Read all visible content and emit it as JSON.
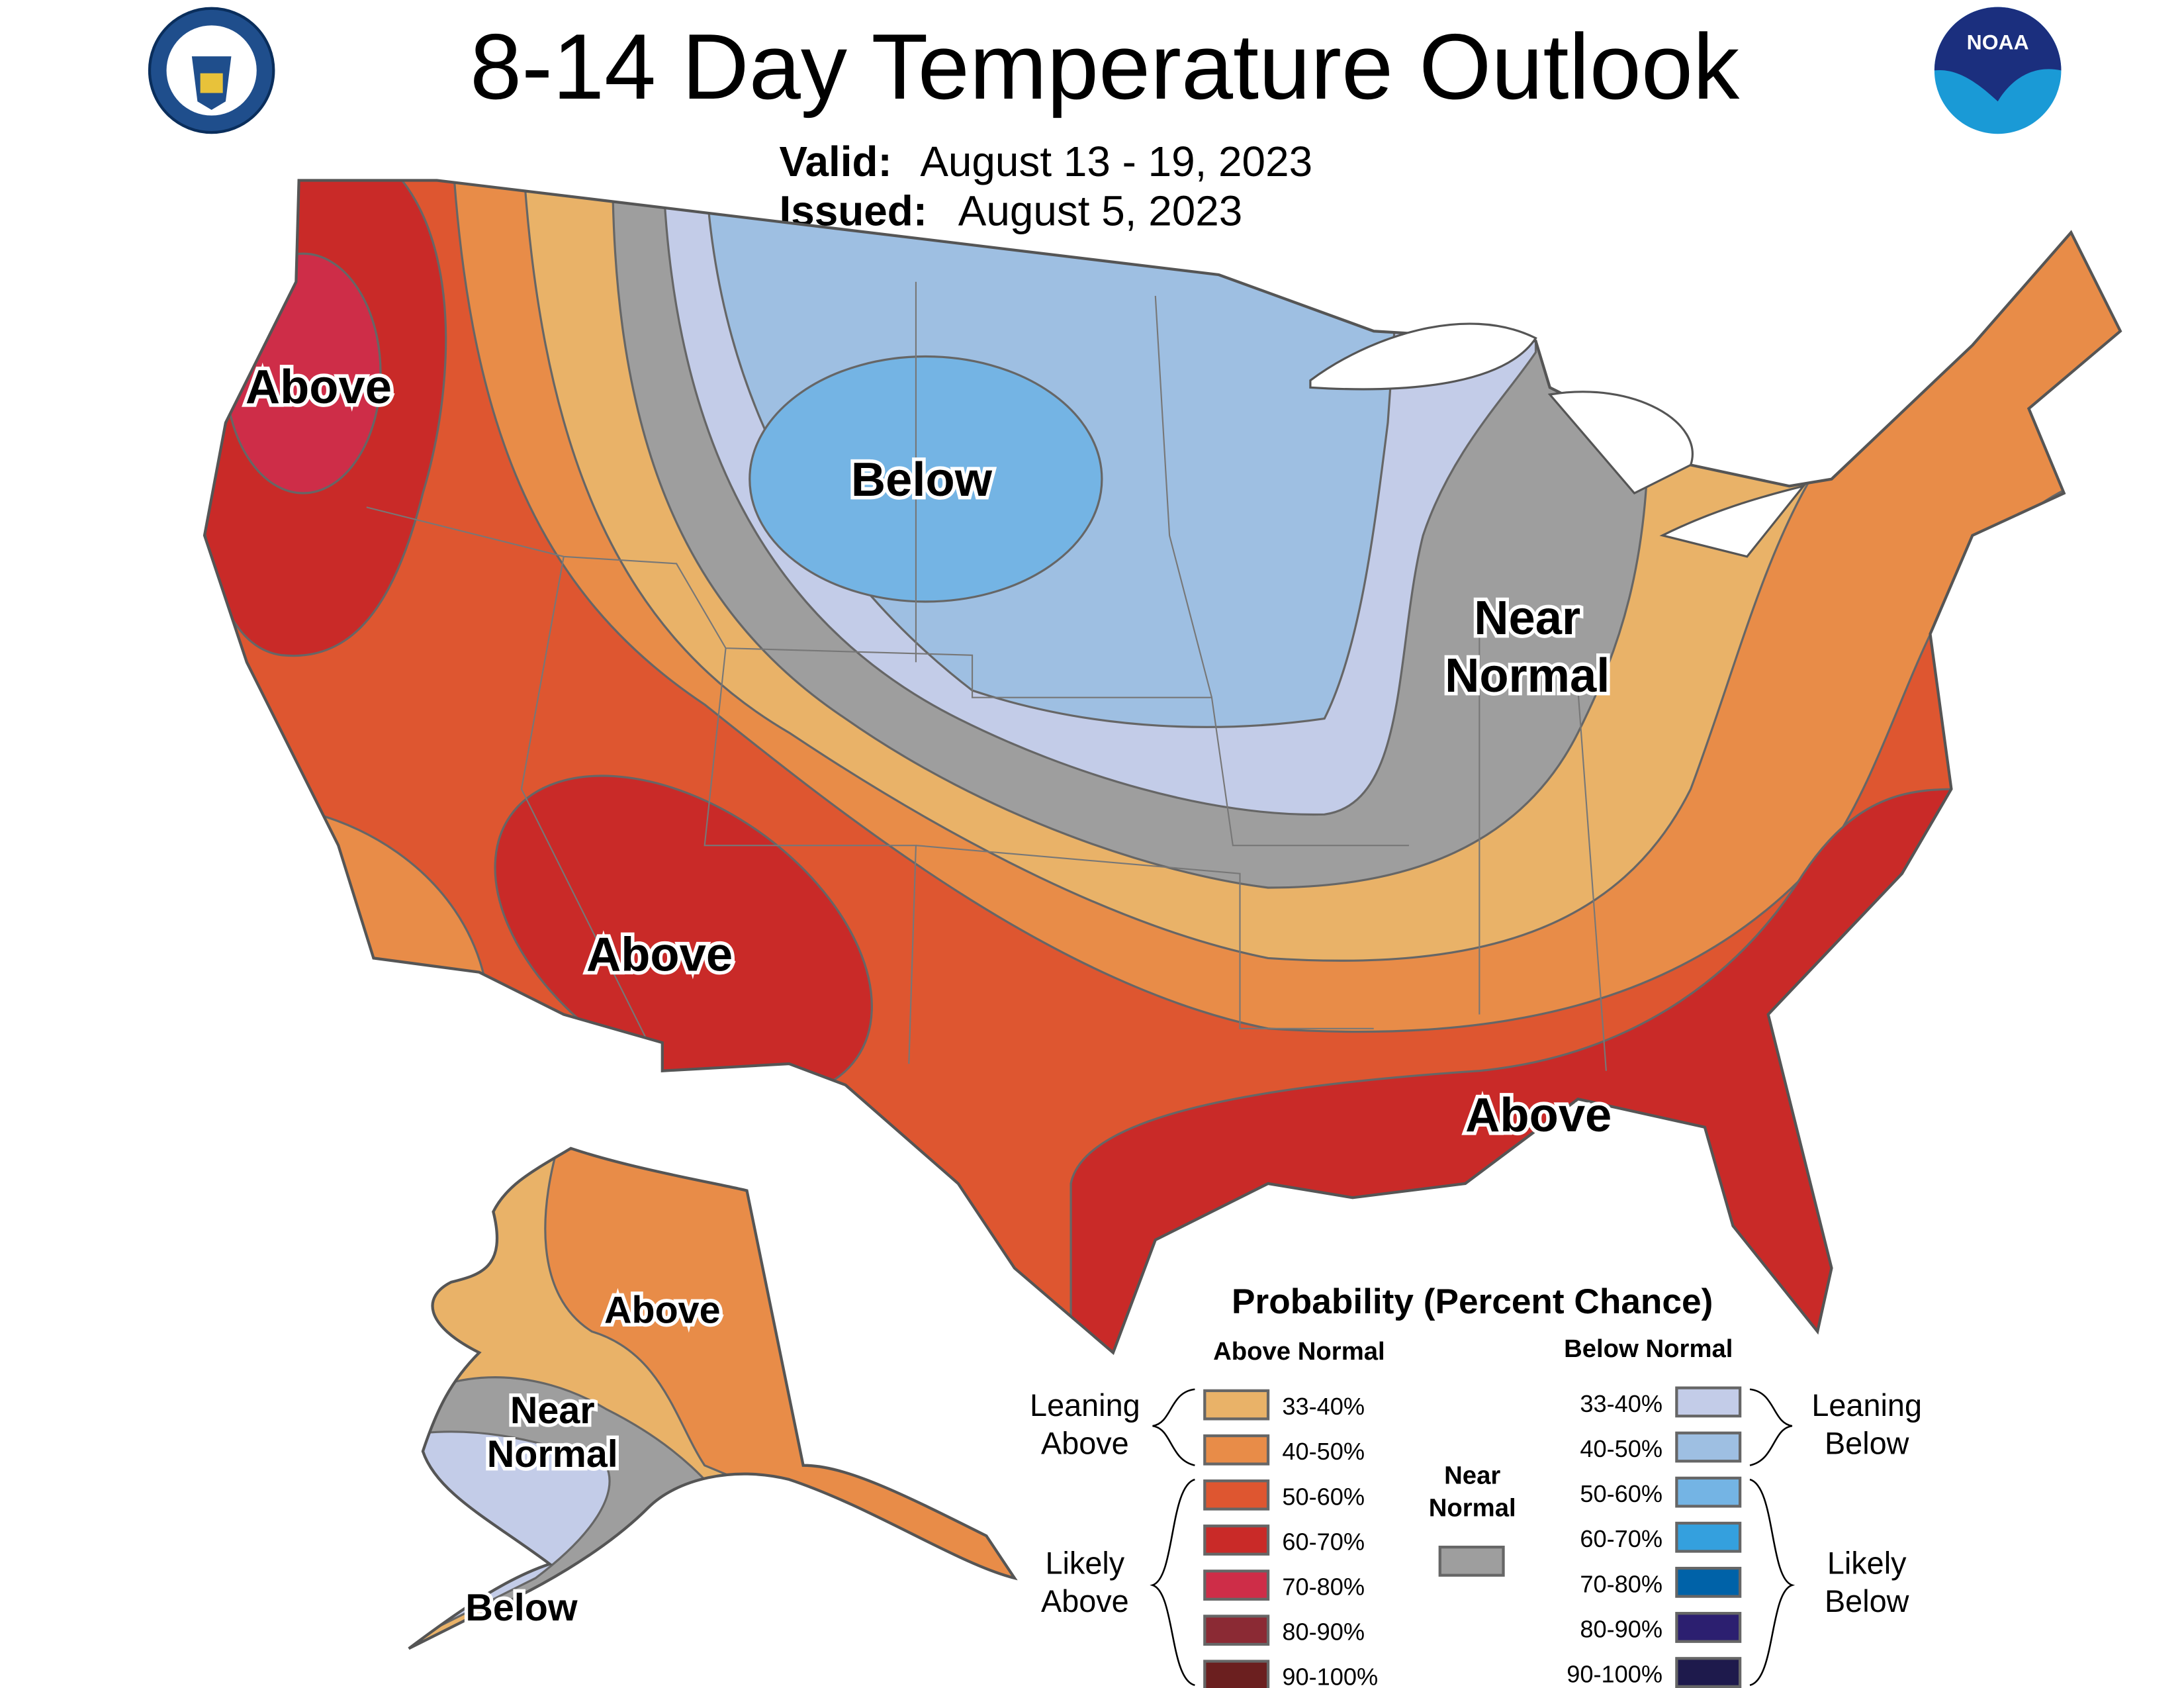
{
  "header": {
    "title": "8-14 Day Temperature Outlook",
    "valid_label": "Valid:",
    "valid_value": "August 13 - 19, 2023",
    "issued_label": "Issued:",
    "issued_value": "August 5, 2023",
    "left_logo": "department-of-commerce-seal",
    "right_logo": "noaa-logo",
    "right_logo_text": "NOAA"
  },
  "map": {
    "labels": {
      "northwest": "Above",
      "north_central": "Below",
      "great_lakes_1": "Near",
      "great_lakes_2": "Normal",
      "southwest": "Above",
      "southeast": "Above",
      "alaska_east": "Above",
      "alaska_mid_1": "Near",
      "alaska_mid_2": "Normal",
      "alaska_southwest": "Below"
    }
  },
  "legend": {
    "title": "Probability (Percent Chance)",
    "above_header": "Above Normal",
    "below_header": "Below Normal",
    "leaning_above": [
      "Leaning",
      "Above"
    ],
    "likely_above": [
      "Likely",
      "Above"
    ],
    "leaning_below": [
      "Leaning",
      "Below"
    ],
    "likely_below": [
      "Likely",
      "Below"
    ],
    "near_normal": [
      "Near",
      "Normal"
    ],
    "near_normal_color": "#9E9E9E",
    "above": [
      {
        "range": "33-40%",
        "color": "#E9B268"
      },
      {
        "range": "40-50%",
        "color": "#E88C48"
      },
      {
        "range": "50-60%",
        "color": "#DE5630"
      },
      {
        "range": "60-70%",
        "color": "#C92A28"
      },
      {
        "range": "70-80%",
        "color": "#CE2D48"
      },
      {
        "range": "80-90%",
        "color": "#8B2A34"
      },
      {
        "range": "90-100%",
        "color": "#6B1F1F"
      }
    ],
    "below": [
      {
        "range": "33-40%",
        "color": "#C3CCE8"
      },
      {
        "range": "40-50%",
        "color": "#9EBFE2"
      },
      {
        "range": "50-60%",
        "color": "#74B4E4"
      },
      {
        "range": "60-70%",
        "color": "#34A0DE"
      },
      {
        "range": "70-80%",
        "color": "#0062A8"
      },
      {
        "range": "80-90%",
        "color": "#2C1F70"
      },
      {
        "range": "90-100%",
        "color": "#1E1A4C"
      }
    ]
  }
}
